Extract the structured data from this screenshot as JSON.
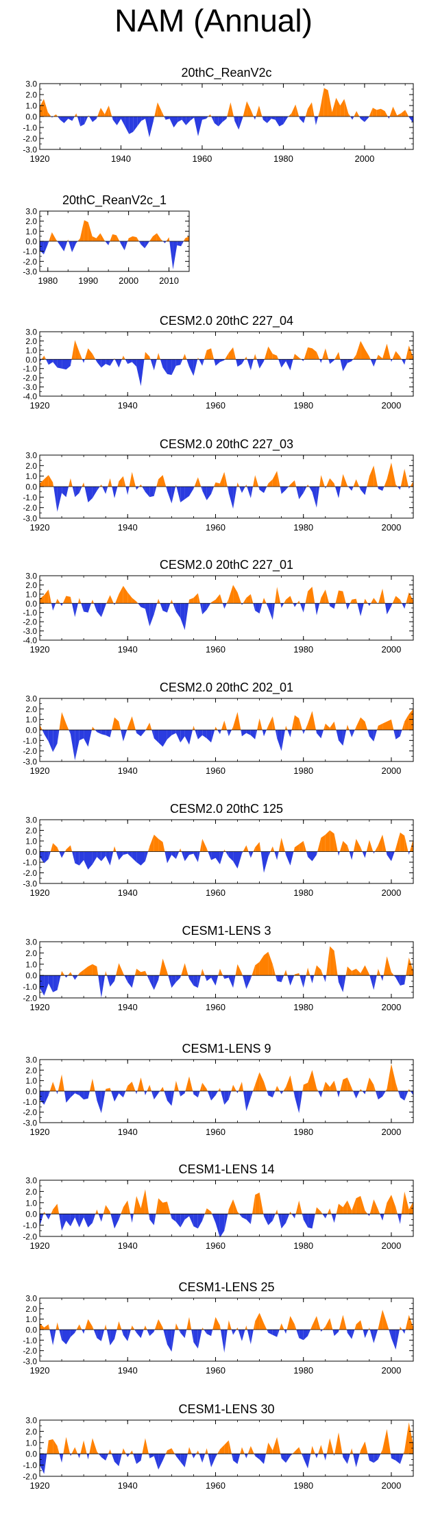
{
  "figure_title": "NAM (Annual)",
  "colors": {
    "positive": "#ff8000",
    "negative": "#2a3ce0",
    "axis": "#000000"
  },
  "chart_data": [
    {
      "type": "area",
      "title": "20thC_ReanV2c",
      "x_range": [
        1920,
        2012
      ],
      "ylim": [
        -3,
        3
      ],
      "yticks": [
        "3.0",
        "2.0",
        "1.0",
        "0.0",
        "-1.0",
        "-2.0",
        "-3.0"
      ],
      "xticks": [
        "1920",
        "1940",
        "1960",
        "1980",
        "2000"
      ],
      "values": [
        0.9,
        1.6,
        0.4,
        -0.1,
        0.2,
        -0.3,
        -0.6,
        -0.2,
        -0.4,
        0.3,
        -0.9,
        -0.7,
        0.1,
        -0.5,
        -0.2,
        0.8,
        0.2,
        1.0,
        -0.3,
        -0.8,
        -0.2,
        -0.9,
        -1.6,
        -1.4,
        -0.9,
        -0.4,
        -0.2,
        -1.9,
        -0.4,
        1.3,
        0.5,
        -0.3,
        -0.2,
        -1.0,
        -0.5,
        -0.3,
        -0.8,
        -0.4,
        -0.1,
        -1.8,
        -0.3,
        -0.2,
        0.2,
        -0.6,
        -0.9,
        -0.5,
        -0.2,
        1.3,
        -0.4,
        -1.2,
        -0.1,
        1.4,
        0.6,
        -0.3,
        1.0,
        -0.3,
        -0.6,
        -0.2,
        -0.3,
        -0.9,
        -0.7,
        -0.1,
        0.3,
        1.1,
        -0.2,
        -0.6,
        0.7,
        1.3,
        -0.8,
        0.6,
        2.6,
        2.4,
        0.4,
        1.7,
        1.0,
        1.6,
        0.3,
        -0.3,
        0.5,
        -0.2,
        -0.5,
        -0.1,
        0.8,
        0.6,
        0.7,
        0.5,
        -0.2,
        0.9,
        0.1,
        0.3,
        0.6,
        -0.1,
        -0.6
      ]
    },
    {
      "type": "area",
      "title": "20thC_ReanV2c_1",
      "x_range": [
        1978,
        2015
      ],
      "ylim": [
        -3,
        3
      ],
      "yticks": [
        "3.0",
        "2.0",
        "1.0",
        "0.0",
        "-1.0",
        "-2.0",
        "-3.0"
      ],
      "xticks": [
        "1980",
        "1990",
        "2000",
        "2010"
      ],
      "values": [
        -0.9,
        -1.3,
        -0.3,
        0.9,
        0.2,
        -0.4,
        -1.0,
        0.2,
        -1.1,
        -0.2,
        0.3,
        2.1,
        1.9,
        0.5,
        0.3,
        0.8,
        0.1,
        -0.4,
        0.7,
        0.6,
        -0.2,
        -0.9,
        0.3,
        0.5,
        0.4,
        -0.3,
        -0.7,
        -0.1,
        0.5,
        0.8,
        0.2,
        -0.2,
        0.4,
        -2.8,
        -0.4,
        -0.5,
        0.3,
        0.5
      ]
    },
    {
      "type": "area",
      "title": "CESM2.0 20thC 227_04",
      "x_range": [
        1920,
        2005
      ],
      "ylim": [
        -4,
        3
      ],
      "yticks": [
        "3.0",
        "2.0",
        "1.0",
        "0.0",
        "-1.0",
        "-2.0",
        "-3.0",
        "-4.0"
      ],
      "xticks": [
        "1920",
        "1940",
        "1960",
        "1980",
        "2000"
      ],
      "values": [
        -0.3,
        0.4,
        -0.6,
        -0.3,
        -0.9,
        -1.0,
        -1.1,
        -0.7,
        2.1,
        0.8,
        -0.4,
        1.2,
        0.6,
        -0.3,
        -0.9,
        -0.5,
        -0.7,
        0.1,
        -0.9,
        0.4,
        -0.5,
        -0.3,
        -0.8,
        -2.9,
        0.8,
        0.3,
        -1.2,
        0.7,
        -0.9,
        -1.6,
        -1.7,
        -0.7,
        -0.6,
        0.6,
        -0.8,
        -1.8,
        0.2,
        -0.7,
        1.0,
        1.2,
        -0.7,
        -0.3,
        -0.1,
        0.7,
        1.3,
        -0.8,
        -0.5,
        0.3,
        -1.2,
        0.6,
        -1.0,
        -0.2,
        1.4,
        0.6,
        0.4,
        -0.9,
        -0.2,
        -1.2,
        0.6,
        0.2,
        -0.2,
        1.3,
        1.2,
        0.8,
        -0.4,
        1.2,
        -0.5,
        -0.1,
        0.8,
        -1.3,
        -0.4,
        -0.2,
        0.5,
        2.0,
        1.1,
        0.3,
        -0.8,
        0.5,
        0.1,
        1.7,
        -0.3,
        0.9,
        0.3,
        -0.6,
        1.5,
        0.2
      ]
    },
    {
      "type": "area",
      "title": "CESM2.0 20thC 227_03",
      "x_range": [
        1920,
        2005
      ],
      "ylim": [
        -3,
        3
      ],
      "yticks": [
        "3.0",
        "2.0",
        "1.0",
        "0.0",
        "-1.0",
        "-2.0",
        "-3.0"
      ],
      "xticks": [
        "1920",
        "1940",
        "1960",
        "1980",
        "2000"
      ],
      "values": [
        0.3,
        0.7,
        1.1,
        0.4,
        -2.4,
        -0.6,
        -1.0,
        0.8,
        -1.0,
        -0.6,
        0.4,
        -1.5,
        -1.1,
        -0.4,
        0.2,
        -0.7,
        0.8,
        -1.1,
        0.5,
        1.0,
        -0.8,
        1.4,
        -0.3,
        0.2,
        -0.5,
        -1.0,
        -0.9,
        0.7,
        1.1,
        -0.4,
        -1.6,
        0.2,
        -1.5,
        -1.2,
        -0.9,
        -0.2,
        0.9,
        -0.4,
        -1.3,
        -0.7,
        0.4,
        0.3,
        1.4,
        -0.6,
        -2.1,
        0.4,
        -0.6,
        0.2,
        -1.1,
        1.1,
        -0.3,
        -0.6,
        0.3,
        0.7,
        1.5,
        -0.7,
        -0.3,
        0.2,
        0.6,
        -1.2,
        -0.6,
        0.2,
        -0.5,
        -2.0,
        1.1,
        -0.2,
        0.8,
        0.3,
        -1.1,
        1.2,
        0.1,
        -0.4,
        0.7,
        -0.3,
        -0.8,
        1.0,
        2.0,
        -0.2,
        -0.4,
        0.7,
        2.3,
        0.2,
        -0.3,
        1.7,
        -0.2,
        0.5
      ]
    },
    {
      "type": "area",
      "title": "CESM2.0 20thC 227_01",
      "x_range": [
        1920,
        2005
      ],
      "ylim": [
        -4,
        3
      ],
      "yticks": [
        "3.0",
        "2.0",
        "1.0",
        "0.0",
        "-1.0",
        "-2.0",
        "-3.0",
        "-4.0"
      ],
      "xticks": [
        "1920",
        "1940",
        "1960",
        "1980",
        "2000"
      ],
      "values": [
        0.5,
        0.9,
        1.5,
        -0.8,
        0.5,
        -0.3,
        0.8,
        0.7,
        -1.5,
        0.6,
        -0.9,
        -1.0,
        0.4,
        -0.9,
        -1.5,
        -0.2,
        0.9,
        -0.2,
        1.0,
        1.9,
        1.2,
        0.6,
        0.2,
        -0.4,
        -0.6,
        -2.5,
        -1.2,
        0.5,
        -0.8,
        -1.0,
        0.4,
        -0.9,
        -1.6,
        -2.9,
        0.4,
        0.6,
        1.1,
        -1.2,
        -0.7,
        0.1,
        0.4,
        1.0,
        -0.6,
        0.5,
        2.0,
        1.2,
        -0.2,
        0.6,
        1.0,
        -0.8,
        -1.1,
        0.6,
        -0.5,
        -1.8,
        1.8,
        -0.5,
        0.4,
        0.8,
        -0.4,
        0.3,
        -1.0,
        1.3,
        1.8,
        -1.3,
        0.6,
        1.5,
        -0.3,
        -0.6,
        1.4,
        1.3,
        -0.7,
        0.4,
        0.5,
        -1.4,
        0.5,
        -0.3,
        0.6,
        -0.1,
        1.6,
        -1.2,
        -0.3,
        0.8,
        0.4,
        -0.6,
        1.2,
        0.3
      ]
    },
    {
      "type": "area",
      "title": "CESM2.0 20thC 202_01",
      "x_range": [
        1920,
        2005
      ],
      "ylim": [
        -3,
        3
      ],
      "yticks": [
        "3.0",
        "2.0",
        "1.0",
        "0.0",
        "-1.0",
        "-2.0",
        "-3.0"
      ],
      "xticks": [
        "1920",
        "1940",
        "1960",
        "1980",
        "2000"
      ],
      "values": [
        0.5,
        -0.4,
        -1.1,
        -2.1,
        -1.3,
        1.7,
        0.6,
        -0.4,
        -2.9,
        -1.0,
        -0.8,
        -1.6,
        0.3,
        -0.2,
        -0.4,
        -0.5,
        -0.7,
        1.2,
        0.8,
        -1.1,
        0.2,
        1.3,
        -0.3,
        -0.6,
        -0.1,
        0.7,
        -0.8,
        -1.2,
        -1.6,
        -0.9,
        -0.5,
        -0.3,
        -1.2,
        -0.6,
        -1.4,
        0.4,
        -0.9,
        -0.5,
        -0.8,
        -1.2,
        0.3,
        -0.4,
        0.9,
        -0.6,
        0.3,
        1.7,
        -0.6,
        -0.3,
        -0.5,
        -0.9,
        1.1,
        -0.6,
        0.4,
        1.3,
        -0.8,
        -2.0,
        0.4,
        -0.7,
        1.4,
        1.1,
        -0.4,
        0.6,
        1.8,
        -0.3,
        -0.8,
        0.6,
        0.2,
        0.8,
        -1.0,
        -1.5,
        0.5,
        -0.7,
        0.3,
        1.2,
        0.8,
        -0.6,
        -1.1,
        0.4,
        0.6,
        0.8,
        1.0,
        -0.9,
        -0.6,
        0.8,
        1.5,
        2.0
      ]
    },
    {
      "type": "area",
      "title": "CESM2.0 20thC 125",
      "x_range": [
        1920,
        2005
      ],
      "ylim": [
        -3,
        3
      ],
      "yticks": [
        "3.0",
        "2.0",
        "1.0",
        "0.0",
        "-1.0",
        "-2.0",
        "-3.0"
      ],
      "xticks": [
        "1920",
        "1940",
        "1960",
        "1980",
        "2000"
      ],
      "values": [
        -0.5,
        -1.1,
        -0.7,
        0.8,
        0.4,
        -0.6,
        0.2,
        0.6,
        -1.1,
        -1.3,
        -0.8,
        -1.7,
        -1.2,
        -0.5,
        -0.9,
        -0.4,
        -1.3,
        0.5,
        -0.8,
        -0.3,
        -0.2,
        -0.6,
        -1.0,
        -1.3,
        -0.9,
        0.5,
        1.6,
        1.2,
        0.9,
        -1.1,
        -0.3,
        -0.7,
        0.3,
        -0.9,
        -0.3,
        -0.2,
        -1.0,
        1.2,
        0.3,
        -0.8,
        -0.6,
        -1.2,
        0.2,
        -0.5,
        -0.9,
        -1.6,
        -0.2,
        0.6,
        -0.6,
        0.4,
        0.9,
        -2.0,
        -0.5,
        0.5,
        -0.8,
        1.3,
        -0.3,
        -1.3,
        0.4,
        0.7,
        1.0,
        -0.5,
        -0.9,
        -0.3,
        1.3,
        1.6,
        2.0,
        1.7,
        -0.4,
        1.0,
        0.6,
        -0.8,
        1.2,
        0.4,
        -0.6,
        1.1,
        -0.2,
        0.6,
        1.6,
        -0.3,
        -0.9,
        0.3,
        1.8,
        1.5,
        -0.3,
        1.2
      ]
    },
    {
      "type": "area",
      "title": "CESM1-LENS 3",
      "x_range": [
        1920,
        2005
      ],
      "ylim": [
        -2,
        3
      ],
      "yticks": [
        "3.0",
        "2.0",
        "1.0",
        "0.0",
        "-1.0",
        "-2.0"
      ],
      "xticks": [
        "1920",
        "1940",
        "1960",
        "1980",
        "2000"
      ],
      "values": [
        -1.1,
        -1.8,
        -0.7,
        -1.5,
        -1.3,
        0.4,
        -0.2,
        0.3,
        -0.4,
        0.2,
        0.5,
        0.8,
        1.0,
        0.8,
        -2.0,
        0.4,
        -1.0,
        -0.5,
        1.1,
        0.2,
        -0.6,
        -1.1,
        0.6,
        0.3,
        0.4,
        -0.5,
        -1.3,
        -0.4,
        1.5,
        0.3,
        -1.1,
        -0.6,
        -0.2,
        1.1,
        -0.3,
        -0.9,
        -1.1,
        0.6,
        -0.5,
        -0.2,
        -0.9,
        0.6,
        -0.3,
        -0.2,
        -1.1,
        1.0,
        0.2,
        -1.2,
        -0.3,
        0.9,
        1.2,
        1.8,
        2.1,
        1.0,
        -0.5,
        -0.6,
        0.5,
        -0.9,
        0.1,
        0.2,
        -1.1,
        0.7,
        -0.7,
        0.9,
        0.5,
        -0.6,
        2.6,
        2.2,
        -0.6,
        -1.5,
        0.8,
        0.4,
        0.6,
        0.2,
        0.9,
        0.1,
        -1.3,
        0.6,
        -0.5,
        1.7,
        0.3,
        -0.2,
        -0.9,
        -0.8,
        1.6,
        0.4
      ]
    },
    {
      "type": "area",
      "title": "CESM1-LENS 9",
      "x_range": [
        1920,
        2005
      ],
      "ylim": [
        -3,
        3
      ],
      "yticks": [
        "3.0",
        "2.0",
        "1.0",
        "0.0",
        "-1.0",
        "-2.0",
        "-3.0"
      ],
      "xticks": [
        "1920",
        "1940",
        "1960",
        "1980",
        "2000"
      ],
      "values": [
        -0.8,
        -1.3,
        -0.4,
        0.9,
        -0.3,
        1.6,
        -1.1,
        -0.6,
        -0.2,
        -0.4,
        -0.8,
        -0.7,
        1.2,
        -0.9,
        -2.1,
        0.2,
        0.3,
        -1.0,
        -0.2,
        -0.6,
        0.5,
        0.9,
        -0.3,
        1.3,
        -0.4,
        0.6,
        -0.8,
        -0.2,
        0.4,
        -0.9,
        -1.4,
        1.0,
        -0.5,
        -0.2,
        1.4,
        -0.3,
        -0.6,
        0.8,
        0.2,
        -0.9,
        -0.4,
        0.3,
        -1.3,
        -0.8,
        0.6,
        -0.2,
        0.9,
        -1.9,
        -0.6,
        0.6,
        1.8,
        0.9,
        -0.4,
        -0.6,
        0.5,
        -0.3,
        0.4,
        1.5,
        -0.5,
        -2.1,
        0.6,
        0.8,
        2.0,
        0.3,
        -0.6,
        0.9,
        0.4,
        1.0,
        -0.6,
        1.1,
        1.3,
        0.3,
        -0.7,
        0.2,
        -0.3,
        1.3,
        0.6,
        -0.8,
        -0.5,
        0.2,
        2.6,
        0.8,
        -0.6,
        -0.9,
        0.2,
        -0.4
      ]
    },
    {
      "type": "area",
      "title": "CESM1-LENS 14",
      "x_range": [
        1920,
        2005
      ],
      "ylim": [
        -2,
        3
      ],
      "yticks": [
        "3.0",
        "2.0",
        "1.0",
        "0.0",
        "-1.0",
        "-2.0"
      ],
      "xticks": [
        "1920",
        "1940",
        "1960",
        "1980",
        "2000"
      ],
      "values": [
        -1.1,
        0.2,
        -0.5,
        0.4,
        0.9,
        -1.5,
        -0.6,
        -1.1,
        -0.3,
        -1.2,
        -0.3,
        -1.2,
        -0.8,
        0.4,
        -0.7,
        0.8,
        0.2,
        -1.3,
        -0.5,
        0.6,
        1.2,
        -0.8,
        1.6,
        0.5,
        2.2,
        -0.5,
        -1.0,
        1.4,
        1.0,
        1.1,
        -0.4,
        -0.7,
        -1.2,
        -0.5,
        -0.2,
        -1.1,
        -1.3,
        -0.6,
        0.5,
        0.2,
        -0.8,
        -2.1,
        -1.5,
        0.4,
        1.3,
        0.2,
        -0.3,
        -0.5,
        -0.9,
        1.7,
        1.9,
        -0.2,
        -1.0,
        -0.6,
        0.4,
        -1.3,
        -0.8,
        0.2,
        -0.4,
        1.2,
        -0.5,
        -1.2,
        -1.3,
        0.6,
        0.2,
        -0.4,
        0.5,
        -0.8,
        0.9,
        0.6,
        1.2,
        0.3,
        1.4,
        1.6,
        0.3,
        -0.2,
        1.3,
        0.4,
        -0.6,
        1.0,
        1.7,
        0.6,
        -0.9,
        2.0,
        0.4,
        1.1
      ]
    },
    {
      "type": "area",
      "title": "CESM1-LENS 25",
      "x_range": [
        1920,
        2005
      ],
      "ylim": [
        -3,
        3
      ],
      "yticks": [
        "3.0",
        "2.0",
        "1.0",
        "0.0",
        "-1.0",
        "-2.0",
        "-3.0"
      ],
      "xticks": [
        "1920",
        "1940",
        "1960",
        "1980",
        "2000"
      ],
      "values": [
        0.6,
        0.2,
        0.5,
        -1.5,
        0.7,
        -1.0,
        -1.4,
        -0.7,
        -0.3,
        0.5,
        -0.4,
        1.0,
        0.3,
        -0.8,
        -1.1,
        0.5,
        -1.5,
        -0.9,
        0.8,
        -0.5,
        -1.1,
        0.4,
        -0.3,
        -0.8,
        0.4,
        -0.6,
        -0.2,
        1.0,
        0.2,
        -1.4,
        -2.1,
        0.6,
        -0.3,
        -0.8,
        1.2,
        -1.2,
        -1.8,
        0.2,
        -0.4,
        -0.6,
        1.2,
        0.4,
        -2.2,
        0.9,
        -0.5,
        0.2,
        -1.1,
        0.4,
        -1.4,
        0.8,
        1.6,
        0.6,
        -0.3,
        -0.5,
        -0.7,
        0.6,
        -0.4,
        1.3,
        0.5,
        -0.8,
        -1.0,
        -0.6,
        0.4,
        1.3,
        -0.2,
        0.3,
        1.1,
        -0.6,
        -0.2,
        1.4,
        -0.3,
        -0.9,
        0.5,
        0.9,
        -0.8,
        0.2,
        -1.3,
        0.1,
        1.9,
        0.6,
        -0.8,
        -1.9,
        0.3,
        -0.4,
        1.4,
        0.2
      ]
    },
    {
      "type": "area",
      "title": "CESM1-LENS 30",
      "x_range": [
        1920,
        2005
      ],
      "ylim": [
        -2,
        3
      ],
      "yticks": [
        "3.0",
        "2.0",
        "1.0",
        "0.0",
        "-1.0",
        "-2.0"
      ],
      "xticks": [
        "1920",
        "1940",
        "1960",
        "1980",
        "2000"
      ],
      "values": [
        -1.0,
        -1.8,
        1.2,
        1.3,
        0.7,
        -0.8,
        1.5,
        -0.2,
        0.6,
        -0.4,
        1.2,
        -0.5,
        1.4,
        0.2,
        -0.3,
        -0.6,
        0.4,
        -0.7,
        -1.1,
        0.5,
        -0.3,
        0.3,
        -0.9,
        -0.6,
        1.4,
        -0.4,
        -0.2,
        -1.4,
        -0.6,
        0.3,
        0.5,
        -0.2,
        -0.7,
        -1.2,
        0.6,
        -0.4,
        0.3,
        -0.8,
        0.5,
        -1.2,
        -0.3,
        0.4,
        0.8,
        1.2,
        -0.6,
        -0.9,
        0.6,
        -0.4,
        0.7,
        -0.2,
        -0.5,
        -0.9,
        1.0,
        0.3,
        1.5,
        -0.4,
        -0.8,
        -0.2,
        0.2,
        0.6,
        -0.4,
        -1.3,
        0.7,
        -0.4,
        0.8,
        -0.6,
        1.4,
        -0.2,
        1.9,
        -0.3,
        -0.9,
        0.5,
        -1.2,
        0.3,
        1.1,
        -0.6,
        -0.8,
        -0.5,
        0.4,
        2.2,
        -0.4,
        -0.6,
        -0.9,
        0.3,
        2.8,
        0.8
      ]
    }
  ]
}
